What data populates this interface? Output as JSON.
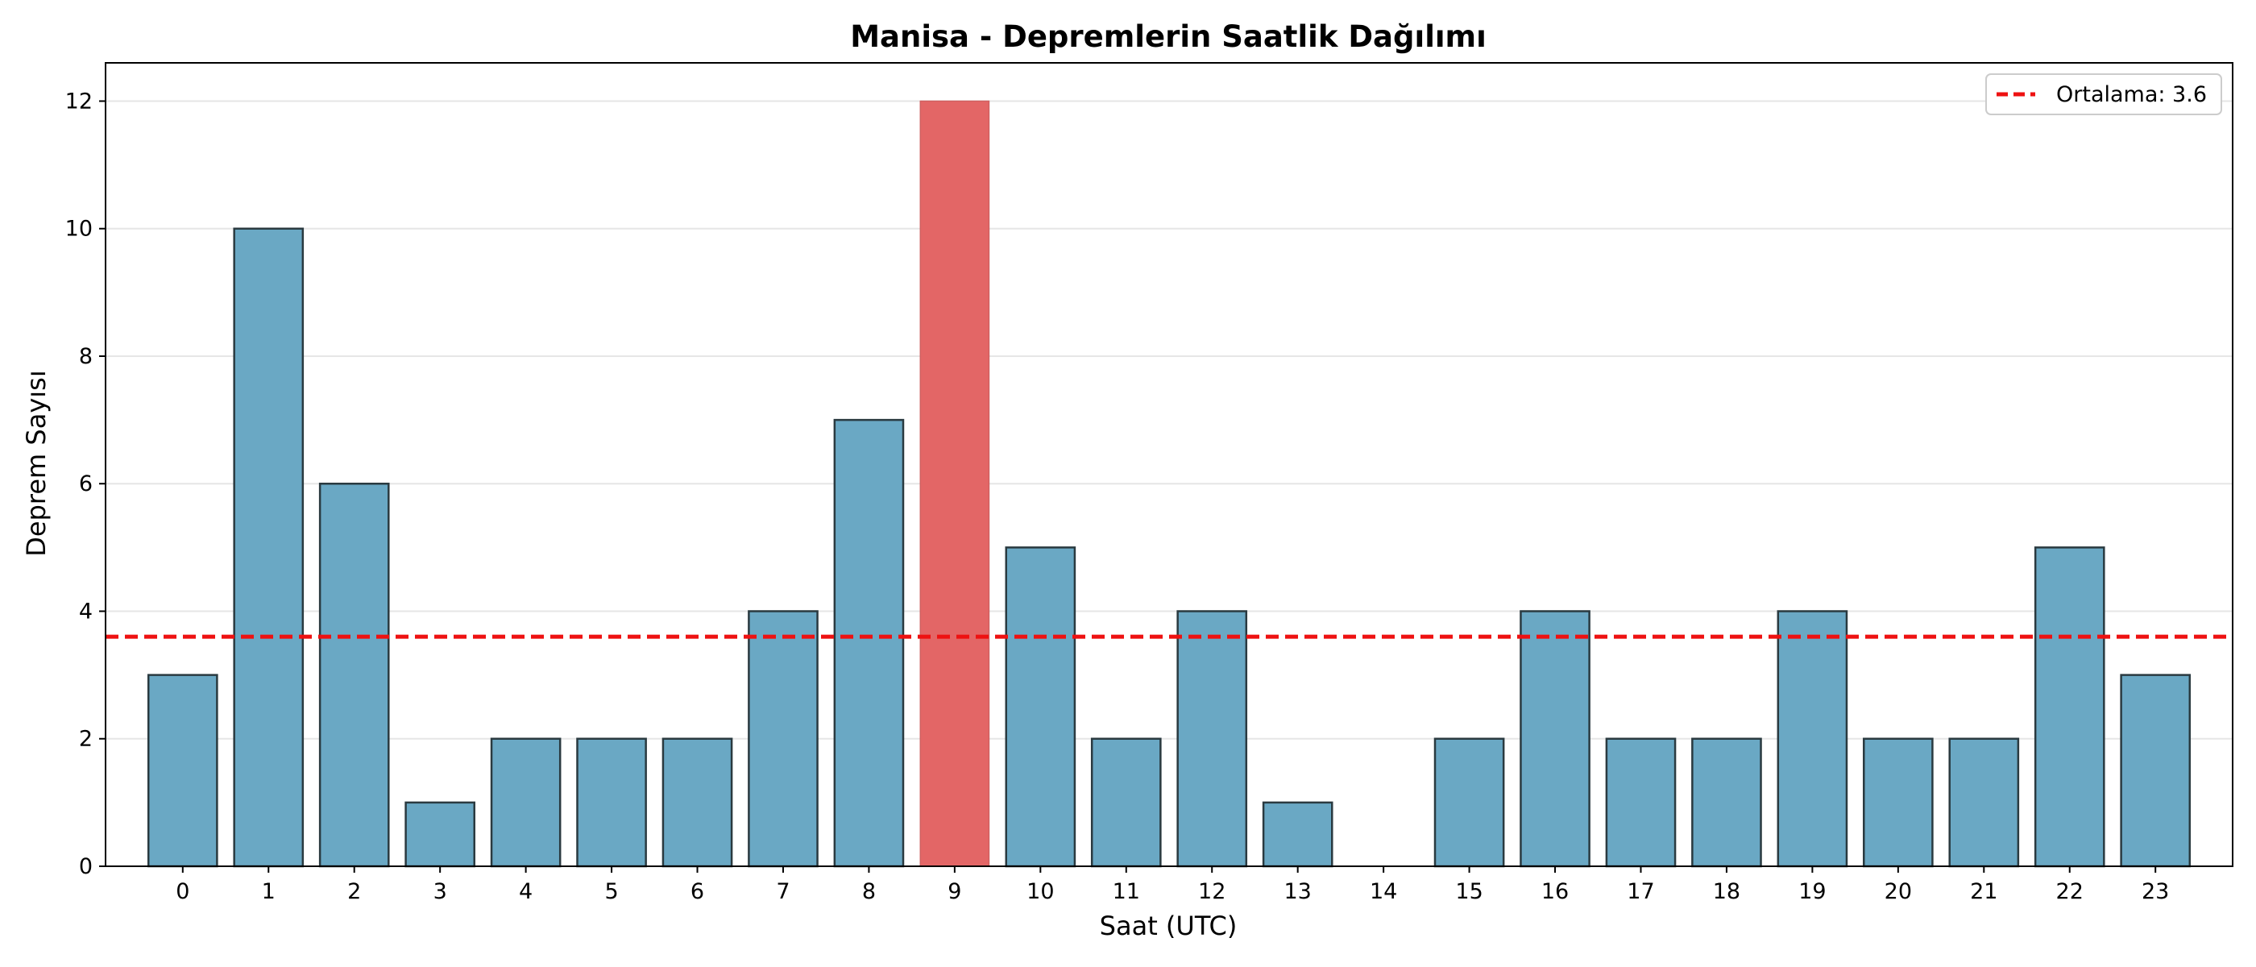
{
  "chart_data": {
    "type": "bar",
    "title": "Manisa - Depremlerin Saatlik Dağılımı",
    "xlabel": "Saat (UTC)",
    "ylabel": "Deprem Sayısı",
    "categories": [
      "0",
      "1",
      "2",
      "3",
      "4",
      "5",
      "6",
      "7",
      "8",
      "9",
      "10",
      "11",
      "12",
      "13",
      "14",
      "15",
      "16",
      "17",
      "18",
      "19",
      "20",
      "21",
      "22",
      "23"
    ],
    "values": [
      3,
      10,
      6,
      1,
      2,
      2,
      2,
      4,
      7,
      12,
      5,
      2,
      4,
      1,
      0,
      2,
      4,
      2,
      2,
      4,
      2,
      2,
      5,
      3
    ],
    "highlight_index": 9,
    "bar_color": "#6aa8c4",
    "highlight_color": "#e36666",
    "edge_color": "#2a3a40",
    "mean": 3.6,
    "mean_line_color": "#ee1111",
    "legend": {
      "label": "Ortalama: 3.6",
      "position": "top-right"
    },
    "ylim": [
      0,
      12.6
    ],
    "yticks": [
      0,
      2,
      4,
      6,
      8,
      10,
      12
    ],
    "grid": "y"
  }
}
